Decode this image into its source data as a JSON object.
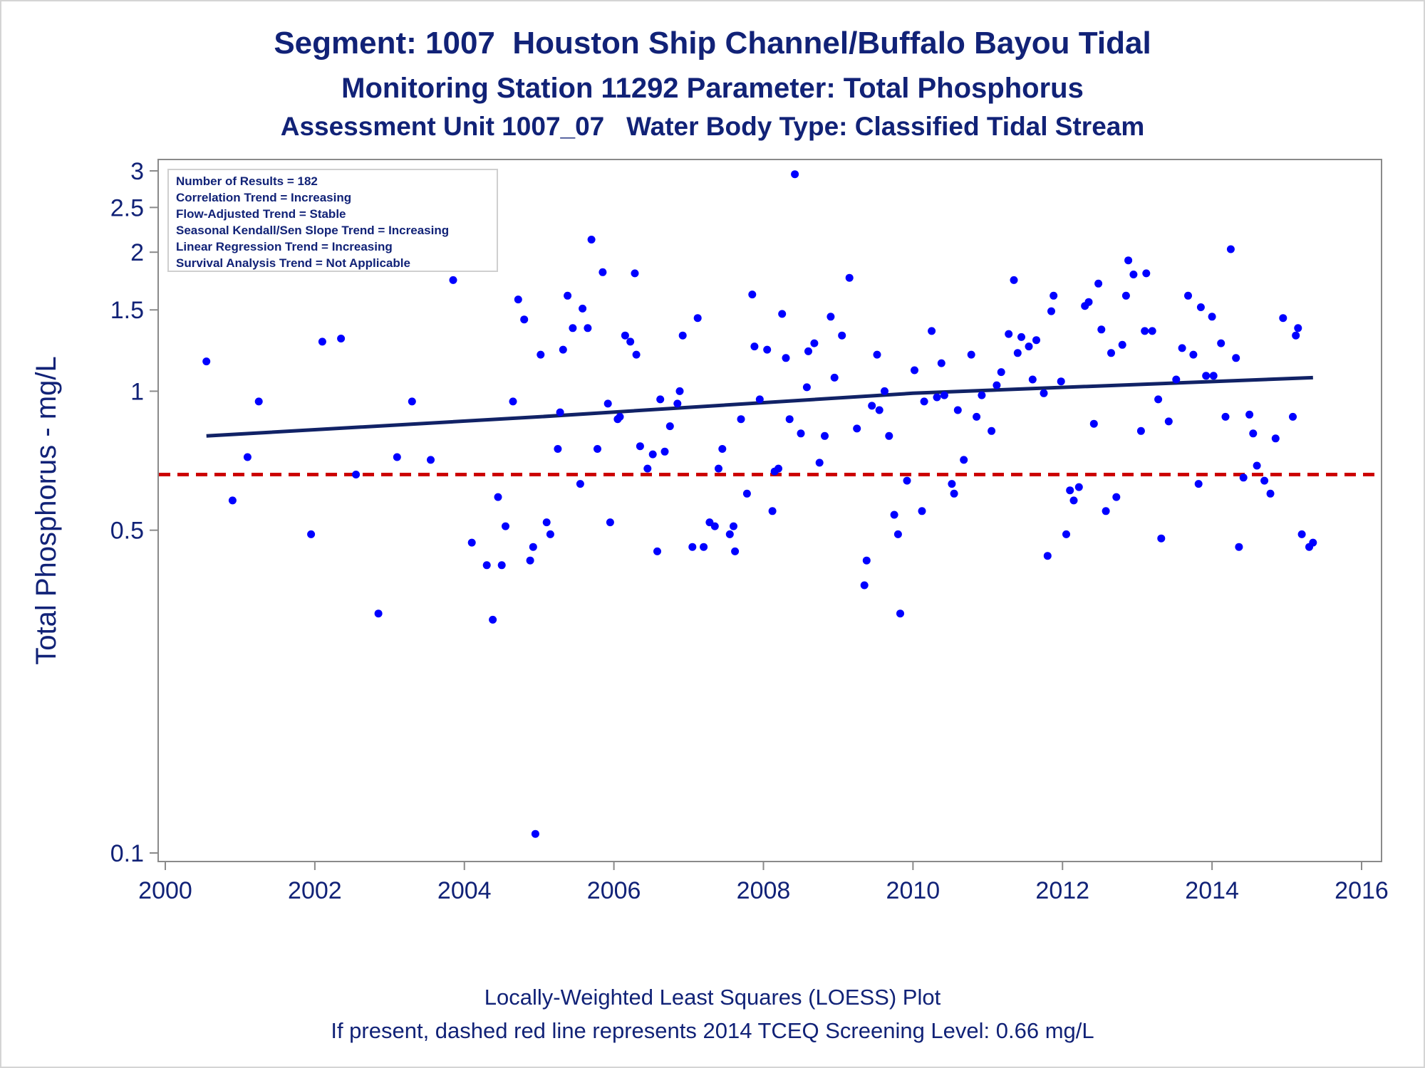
{
  "chart_data": {
    "type": "scatter",
    "title": "Segment: 1007  Houston Ship Channel/Buffalo Bayou Tidal",
    "subtitle": "Monitoring Station 11292 Parameter: Total Phosphorus",
    "subtitle2": "Assessment Unit 1007_07   Water Body Type: Classified Tidal Stream",
    "xlabel": "",
    "ylabel": "Total Phosphorus - mg/L",
    "xlim": [
      2000,
      2016
    ],
    "ylim": [
      0.09,
      3.05
    ],
    "yscale": "log",
    "x_ticks": [
      2000,
      2002,
      2004,
      2006,
      2008,
      2010,
      2012,
      2014,
      2016
    ],
    "y_ticks": [
      0.1,
      0.5,
      1,
      1.5,
      2,
      2.5,
      3
    ],
    "y_tick_labels": [
      "0.1",
      "0.5",
      "1",
      "1.5",
      "2",
      "2.5",
      "3"
    ],
    "grid": false,
    "legend_box": {
      "position": "top-left",
      "lines": [
        "Number of Results = 182",
        "Correlation Trend = Increasing",
        "Flow-Adjusted Trend = Stable",
        "Seasonal Kendall/Sen Slope Trend = Increasing",
        "Linear Regression Trend = Increasing",
        "Survival Analysis Trend = Not Applicable"
      ]
    },
    "series": [
      {
        "type": "scatter",
        "color": "#0000ff",
        "points": [
          [
            2000.55,
            1.16
          ],
          [
            2000.9,
            0.58
          ],
          [
            2001.1,
            0.72
          ],
          [
            2001.25,
            0.95
          ],
          [
            2001.95,
            0.49
          ],
          [
            2002.1,
            1.28
          ],
          [
            2002.35,
            1.3
          ],
          [
            2002.55,
            0.66
          ],
          [
            2002.85,
            0.33
          ],
          [
            2003.1,
            0.72
          ],
          [
            2003.3,
            0.95
          ],
          [
            2003.55,
            0.71
          ],
          [
            2003.85,
            1.74
          ],
          [
            2004.1,
            0.47
          ],
          [
            2004.3,
            0.42
          ],
          [
            2004.38,
            0.32
          ],
          [
            2004.45,
            0.59
          ],
          [
            2004.5,
            0.42
          ],
          [
            2004.55,
            0.51
          ],
          [
            2004.65,
            0.95
          ],
          [
            2004.72,
            1.58
          ],
          [
            2004.8,
            1.43
          ],
          [
            2004.88,
            0.43
          ],
          [
            2004.92,
            0.46
          ],
          [
            2004.95,
            0.11
          ],
          [
            2005.02,
            1.2
          ],
          [
            2005.1,
            0.52
          ],
          [
            2005.15,
            0.49
          ],
          [
            2005.25,
            0.75
          ],
          [
            2005.28,
            0.9
          ],
          [
            2005.32,
            1.23
          ],
          [
            2005.38,
            1.61
          ],
          [
            2005.45,
            1.37
          ],
          [
            2005.55,
            0.63
          ],
          [
            2005.58,
            1.51
          ],
          [
            2005.65,
            1.37
          ],
          [
            2005.7,
            2.13
          ],
          [
            2005.78,
            0.75
          ],
          [
            2005.85,
            1.81
          ],
          [
            2005.92,
            0.94
          ],
          [
            2005.95,
            0.52
          ],
          [
            2006.05,
            0.87
          ],
          [
            2006.08,
            0.88
          ],
          [
            2006.15,
            1.32
          ],
          [
            2006.22,
            1.28
          ],
          [
            2006.28,
            1.8
          ],
          [
            2006.3,
            1.2
          ],
          [
            2006.35,
            0.76
          ],
          [
            2006.45,
            0.68
          ],
          [
            2006.52,
            0.73
          ],
          [
            2006.58,
            0.45
          ],
          [
            2006.62,
            0.96
          ],
          [
            2006.68,
            0.74
          ],
          [
            2006.75,
            0.84
          ],
          [
            2006.85,
            0.94
          ],
          [
            2006.88,
            1.0
          ],
          [
            2006.92,
            1.32
          ],
          [
            2007.05,
            0.46
          ],
          [
            2007.12,
            1.44
          ],
          [
            2007.2,
            0.46
          ],
          [
            2007.28,
            0.52
          ],
          [
            2007.35,
            0.51
          ],
          [
            2007.4,
            0.68
          ],
          [
            2007.45,
            0.75
          ],
          [
            2007.55,
            0.49
          ],
          [
            2007.6,
            0.51
          ],
          [
            2007.62,
            0.45
          ],
          [
            2007.7,
            0.87
          ],
          [
            2007.78,
            0.6
          ],
          [
            2007.85,
            1.62
          ],
          [
            2007.88,
            1.25
          ],
          [
            2007.95,
            0.96
          ],
          [
            2008.05,
            1.23
          ],
          [
            2008.12,
            0.55
          ],
          [
            2008.15,
            0.67
          ],
          [
            2008.2,
            0.68
          ],
          [
            2008.25,
            1.47
          ],
          [
            2008.3,
            1.18
          ],
          [
            2008.35,
            0.87
          ],
          [
            2008.42,
            2.95
          ],
          [
            2008.5,
            0.81
          ],
          [
            2008.58,
            1.02
          ],
          [
            2008.6,
            1.22
          ],
          [
            2008.68,
            1.27
          ],
          [
            2008.75,
            0.7
          ],
          [
            2008.82,
            0.8
          ],
          [
            2008.9,
            1.45
          ],
          [
            2008.95,
            1.07
          ],
          [
            2009.05,
            1.32
          ],
          [
            2009.15,
            1.76
          ],
          [
            2009.25,
            0.83
          ],
          [
            2009.35,
            0.38
          ],
          [
            2009.38,
            0.43
          ],
          [
            2009.45,
            0.93
          ],
          [
            2009.52,
            1.2
          ],
          [
            2009.55,
            0.91
          ],
          [
            2009.62,
            1.0
          ],
          [
            2009.68,
            0.8
          ],
          [
            2009.75,
            0.54
          ],
          [
            2009.8,
            0.49
          ],
          [
            2009.83,
            0.33
          ],
          [
            2009.92,
            0.64
          ],
          [
            2010.02,
            1.11
          ],
          [
            2010.12,
            0.55
          ],
          [
            2010.15,
            0.95
          ],
          [
            2010.25,
            1.35
          ],
          [
            2010.32,
            0.97
          ],
          [
            2010.38,
            1.15
          ],
          [
            2010.42,
            0.98
          ],
          [
            2010.52,
            0.63
          ],
          [
            2010.55,
            0.6
          ],
          [
            2010.6,
            0.91
          ],
          [
            2010.68,
            0.71
          ],
          [
            2010.78,
            1.2
          ],
          [
            2010.85,
            0.88
          ],
          [
            2010.92,
            0.98
          ],
          [
            2011.05,
            0.82
          ],
          [
            2011.12,
            1.03
          ],
          [
            2011.18,
            1.1
          ],
          [
            2011.28,
            1.33
          ],
          [
            2011.35,
            1.74
          ],
          [
            2011.4,
            1.21
          ],
          [
            2011.45,
            1.31
          ],
          [
            2011.55,
            1.25
          ],
          [
            2011.6,
            1.06
          ],
          [
            2011.65,
            1.29
          ],
          [
            2011.75,
            0.99
          ],
          [
            2011.8,
            0.44
          ],
          [
            2011.85,
            1.49
          ],
          [
            2011.88,
            1.61
          ],
          [
            2011.98,
            1.05
          ],
          [
            2012.05,
            0.49
          ],
          [
            2012.1,
            0.61
          ],
          [
            2012.15,
            0.58
          ],
          [
            2012.22,
            0.62
          ],
          [
            2012.3,
            1.53
          ],
          [
            2012.35,
            1.56
          ],
          [
            2012.42,
            0.85
          ],
          [
            2012.48,
            1.71
          ],
          [
            2012.52,
            1.36
          ],
          [
            2012.58,
            0.55
          ],
          [
            2012.65,
            1.21
          ],
          [
            2012.72,
            0.59
          ],
          [
            2012.8,
            1.26
          ],
          [
            2012.85,
            1.61
          ],
          [
            2012.88,
            1.92
          ],
          [
            2012.95,
            1.79
          ],
          [
            2013.05,
            0.82
          ],
          [
            2013.1,
            1.35
          ],
          [
            2013.12,
            1.8
          ],
          [
            2013.2,
            1.35
          ],
          [
            2013.28,
            0.96
          ],
          [
            2013.32,
            0.48
          ],
          [
            2013.42,
            0.86
          ],
          [
            2013.52,
            1.06
          ],
          [
            2013.6,
            1.24
          ],
          [
            2013.68,
            1.61
          ],
          [
            2013.75,
            1.2
          ],
          [
            2013.82,
            0.63
          ],
          [
            2013.85,
            1.52
          ],
          [
            2013.92,
            1.08
          ],
          [
            2014.0,
            1.45
          ],
          [
            2014.02,
            1.08
          ],
          [
            2014.12,
            1.27
          ],
          [
            2014.18,
            0.88
          ],
          [
            2014.25,
            2.03
          ],
          [
            2014.32,
            1.18
          ],
          [
            2014.36,
            0.46
          ],
          [
            2014.42,
            0.65
          ],
          [
            2014.5,
            0.89
          ],
          [
            2014.55,
            0.81
          ],
          [
            2014.6,
            0.69
          ],
          [
            2014.7,
            0.64
          ],
          [
            2014.78,
            0.6
          ],
          [
            2014.85,
            0.79
          ],
          [
            2014.95,
            1.44
          ],
          [
            2015.08,
            0.88
          ],
          [
            2015.12,
            1.32
          ],
          [
            2015.15,
            1.37
          ],
          [
            2015.2,
            0.49
          ],
          [
            2015.3,
            0.46
          ],
          [
            2015.35,
            0.47
          ]
        ]
      },
      {
        "type": "line",
        "style": "solid",
        "color": "#112266",
        "points": [
          [
            2000.55,
            0.8
          ],
          [
            2005.0,
            0.88
          ],
          [
            2010.0,
            0.99
          ],
          [
            2015.35,
            1.07
          ]
        ]
      },
      {
        "type": "hline",
        "style": "dashed",
        "color": "#cc0000",
        "y": 0.66
      }
    ]
  },
  "footer": {
    "line1": "Locally-Weighted Least Squares (LOESS) Plot",
    "line2": "If present, dashed red line represents 2014 TCEQ Screening Level: 0.66 mg/L"
  }
}
